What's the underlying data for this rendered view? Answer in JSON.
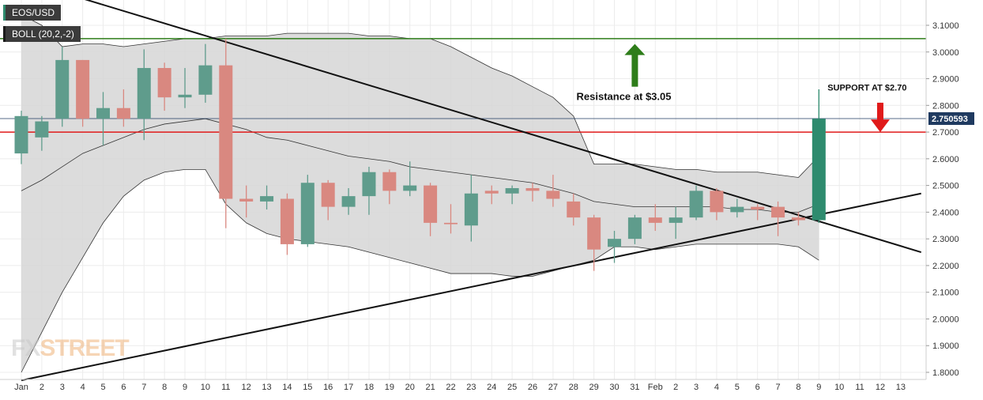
{
  "window": {
    "symbol": "EOS/USD",
    "indicator": "BOLL (20,2,-2)"
  },
  "watermark": {
    "part1": "FX",
    "part2": "STREET"
  },
  "colors": {
    "bullish": "#5f9c8c",
    "bearish": "#d98880",
    "last_candle": "#2e8b6e",
    "band_fill": "#d6d6d6",
    "resistance": "#2e7d1a",
    "support": "#e01a1a",
    "last_price_line": "#1f3a60",
    "trendline": "#111111",
    "price_tag_bg": "#1f3a60"
  },
  "annotations": {
    "resistance_text": "Resistance at $3.05",
    "support_text": "SUPPORT AT $2.70"
  },
  "chart_data": {
    "type": "candlestick",
    "title": "",
    "xlabel": "",
    "ylabel": "",
    "ylim": [
      1.78,
      3.14
    ],
    "grid": true,
    "y_ticks": [
      "1.8000",
      "1.9000",
      "2.0000",
      "2.1000",
      "2.2000",
      "2.3000",
      "2.4000",
      "2.5000",
      "2.6000",
      "2.7000",
      "2.8000",
      "2.9000",
      "3.0000",
      "3.1000"
    ],
    "x_ticks": [
      "Jan",
      "2",
      "3",
      "4",
      "5",
      "6",
      "7",
      "8",
      "9",
      "10",
      "11",
      "12",
      "13",
      "14",
      "15",
      "16",
      "17",
      "18",
      "19",
      "20",
      "21",
      "22",
      "23",
      "24",
      "25",
      "26",
      "27",
      "28",
      "29",
      "30",
      "31",
      "Feb",
      "2",
      "3",
      "4",
      "5",
      "6",
      "7",
      "8",
      "9",
      "10",
      "11",
      "12",
      "13"
    ],
    "last_price": {
      "value": 2.750593,
      "label": "2.750593"
    },
    "resistance_level": 3.05,
    "support_level": 2.7,
    "candles": [
      {
        "x": "Jan 1",
        "o": 2.62,
        "h": 2.78,
        "l": 2.58,
        "c": 2.76
      },
      {
        "x": "Jan 2",
        "o": 2.68,
        "h": 2.76,
        "l": 2.63,
        "c": 2.74
      },
      {
        "x": "Jan 3",
        "o": 2.75,
        "h": 3.02,
        "l": 2.72,
        "c": 2.97
      },
      {
        "x": "Jan 4",
        "o": 2.97,
        "h": 2.97,
        "l": 2.72,
        "c": 2.75
      },
      {
        "x": "Jan 5",
        "o": 2.75,
        "h": 2.85,
        "l": 2.65,
        "c": 2.79
      },
      {
        "x": "Jan 6",
        "o": 2.79,
        "h": 2.86,
        "l": 2.72,
        "c": 2.75
      },
      {
        "x": "Jan 7",
        "o": 2.75,
        "h": 3.01,
        "l": 2.67,
        "c": 2.94
      },
      {
        "x": "Jan 8",
        "o": 2.94,
        "h": 2.96,
        "l": 2.78,
        "c": 2.83
      },
      {
        "x": "Jan 9",
        "o": 2.83,
        "h": 2.94,
        "l": 2.79,
        "c": 2.84
      },
      {
        "x": "Jan 10",
        "o": 2.84,
        "h": 3.03,
        "l": 2.81,
        "c": 2.95
      },
      {
        "x": "Jan 11",
        "o": 2.95,
        "h": 3.05,
        "l": 2.34,
        "c": 2.45
      },
      {
        "x": "Jan 12",
        "o": 2.45,
        "h": 2.5,
        "l": 2.38,
        "c": 2.44
      },
      {
        "x": "Jan 13",
        "o": 2.44,
        "h": 2.5,
        "l": 2.41,
        "c": 2.46
      },
      {
        "x": "Jan 14",
        "o": 2.45,
        "h": 2.47,
        "l": 2.24,
        "c": 2.28
      },
      {
        "x": "Jan 15",
        "o": 2.28,
        "h": 2.54,
        "l": 2.27,
        "c": 2.51
      },
      {
        "x": "Jan 16",
        "o": 2.51,
        "h": 2.52,
        "l": 2.37,
        "c": 2.42
      },
      {
        "x": "Jan 17",
        "o": 2.42,
        "h": 2.49,
        "l": 2.39,
        "c": 2.46
      },
      {
        "x": "Jan 18",
        "o": 2.46,
        "h": 2.57,
        "l": 2.39,
        "c": 2.55
      },
      {
        "x": "Jan 19",
        "o": 2.55,
        "h": 2.56,
        "l": 2.43,
        "c": 2.48
      },
      {
        "x": "Jan 20",
        "o": 2.48,
        "h": 2.59,
        "l": 2.46,
        "c": 2.5
      },
      {
        "x": "Jan 21",
        "o": 2.5,
        "h": 2.51,
        "l": 2.31,
        "c": 2.36
      },
      {
        "x": "Jan 22",
        "o": 2.36,
        "h": 2.43,
        "l": 2.32,
        "c": 2.355
      },
      {
        "x": "Jan 23",
        "o": 2.35,
        "h": 2.54,
        "l": 2.29,
        "c": 2.47
      },
      {
        "x": "Jan 24",
        "o": 2.48,
        "h": 2.5,
        "l": 2.43,
        "c": 2.47
      },
      {
        "x": "Jan 25",
        "o": 2.47,
        "h": 2.5,
        "l": 2.43,
        "c": 2.49
      },
      {
        "x": "Jan 26",
        "o": 2.49,
        "h": 2.51,
        "l": 2.44,
        "c": 2.48
      },
      {
        "x": "Jan 27",
        "o": 2.48,
        "h": 2.54,
        "l": 2.42,
        "c": 2.45
      },
      {
        "x": "Jan 28",
        "o": 2.44,
        "h": 2.47,
        "l": 2.35,
        "c": 2.38
      },
      {
        "x": "Jan 29",
        "o": 2.38,
        "h": 2.39,
        "l": 2.18,
        "c": 2.26
      },
      {
        "x": "Jan 30",
        "o": 2.27,
        "h": 2.33,
        "l": 2.21,
        "c": 2.3
      },
      {
        "x": "Jan 31",
        "o": 2.3,
        "h": 2.39,
        "l": 2.28,
        "c": 2.38
      },
      {
        "x": "Feb 1",
        "o": 2.38,
        "h": 2.43,
        "l": 2.33,
        "c": 2.36
      },
      {
        "x": "Feb 2",
        "o": 2.36,
        "h": 2.42,
        "l": 2.3,
        "c": 2.38
      },
      {
        "x": "Feb 3",
        "o": 2.38,
        "h": 2.5,
        "l": 2.37,
        "c": 2.48
      },
      {
        "x": "Feb 4",
        "o": 2.48,
        "h": 2.49,
        "l": 2.37,
        "c": 2.4
      },
      {
        "x": "Feb 5",
        "o": 2.4,
        "h": 2.45,
        "l": 2.38,
        "c": 2.42
      },
      {
        "x": "Feb 6",
        "o": 2.42,
        "h": 2.43,
        "l": 2.37,
        "c": 2.41
      },
      {
        "x": "Feb 7",
        "o": 2.42,
        "h": 2.44,
        "l": 2.31,
        "c": 2.38
      },
      {
        "x": "Feb 8",
        "o": 2.38,
        "h": 2.4,
        "l": 2.35,
        "c": 2.37
      },
      {
        "x": "Feb 9",
        "o": 2.37,
        "h": 2.86,
        "l": 2.36,
        "c": 2.75,
        "last": true
      }
    ],
    "bollinger": {
      "upper": [
        3.14,
        3.1,
        3.02,
        3.03,
        3.03,
        3.02,
        3.03,
        3.04,
        3.05,
        3.05,
        3.06,
        3.06,
        3.06,
        3.07,
        3.07,
        3.07,
        3.07,
        3.06,
        3.06,
        3.05,
        3.05,
        3.02,
        2.98,
        2.94,
        2.91,
        2.87,
        2.83,
        2.76,
        2.58,
        2.58,
        2.58,
        2.57,
        2.56,
        2.56,
        2.55,
        2.55,
        2.55,
        2.54,
        2.53,
        2.61
      ],
      "middle": [
        2.48,
        2.52,
        2.57,
        2.62,
        2.65,
        2.68,
        2.71,
        2.73,
        2.74,
        2.75,
        2.73,
        2.71,
        2.68,
        2.67,
        2.65,
        2.63,
        2.61,
        2.6,
        2.59,
        2.57,
        2.56,
        2.55,
        2.54,
        2.53,
        2.52,
        2.51,
        2.49,
        2.47,
        2.44,
        2.43,
        2.42,
        2.42,
        2.42,
        2.42,
        2.42,
        2.41,
        2.41,
        2.4,
        2.4,
        2.43
      ],
      "lower": [
        1.8,
        1.95,
        2.1,
        2.23,
        2.36,
        2.46,
        2.52,
        2.55,
        2.56,
        2.56,
        2.43,
        2.36,
        2.32,
        2.3,
        2.29,
        2.28,
        2.27,
        2.25,
        2.23,
        2.21,
        2.19,
        2.17,
        2.17,
        2.17,
        2.16,
        2.16,
        2.18,
        2.2,
        2.22,
        2.27,
        2.27,
        2.26,
        2.27,
        2.28,
        2.28,
        2.28,
        2.28,
        2.28,
        2.27,
        2.22
      ]
    },
    "trendlines": [
      {
        "name": "descending",
        "from": {
          "x": "Jan 4",
          "y": 3.2
        },
        "to": {
          "x": "Feb 14",
          "y": 2.25
        }
      },
      {
        "name": "ascending",
        "from": {
          "x": "Jan 1",
          "y": 1.77
        },
        "to": {
          "x": "Feb 14",
          "y": 2.47
        }
      }
    ],
    "arrows": [
      {
        "direction": "up",
        "x": "Jan 31",
        "y_from": 2.87,
        "y_to": 3.03,
        "color": "resistance"
      },
      {
        "direction": "down",
        "x": "Feb 12",
        "y_from": 2.81,
        "y_to": 2.7,
        "color": "support"
      }
    ]
  }
}
